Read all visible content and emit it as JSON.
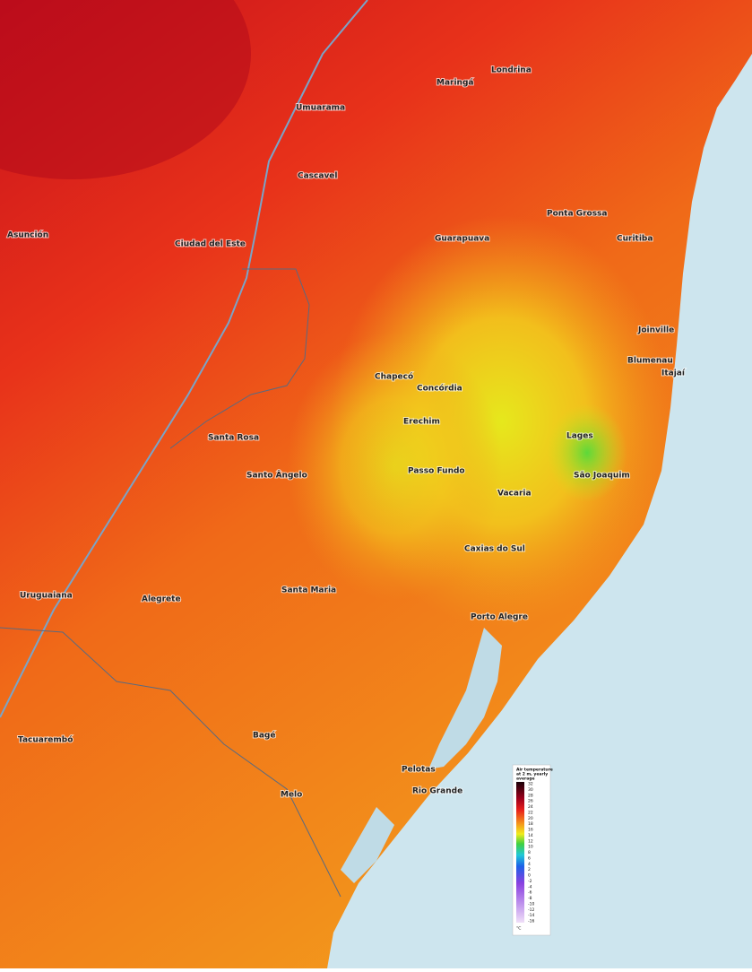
{
  "map": {
    "cities": [
      "Londrina",
      "Maringá",
      "Umuarama",
      "Cascavel",
      "Guarapuava",
      "Ponta Grossa",
      "Curitiba",
      "Joinville",
      "Blumenau",
      "Itajaí",
      "Chapecó",
      "Concórdia",
      "Erechim",
      "Lages",
      "São Joaquim",
      "Passo Fundo",
      "Vacaria",
      "Caxias do Sul",
      "Porto Alegre",
      "Santa Maria",
      "Santa Rosa",
      "Santo Ângelo",
      "Alegrete",
      "Uruguaiana",
      "Bagé",
      "Pelotas",
      "Rio Grande",
      "Tacuarembó",
      "Melo",
      "Asunción",
      "Ciudad del Este"
    ],
    "legend": {
      "title_lines": [
        "Air temperature",
        "at 2 m, yearly",
        "average"
      ],
      "ticks": [
        32,
        30,
        28,
        26,
        24,
        22,
        20,
        18,
        16,
        14,
        12,
        10,
        8,
        6,
        4,
        2,
        0,
        -2,
        -4,
        -6,
        -8,
        -10,
        -12,
        -14,
        -16
      ],
      "unit": "°C"
    }
  }
}
